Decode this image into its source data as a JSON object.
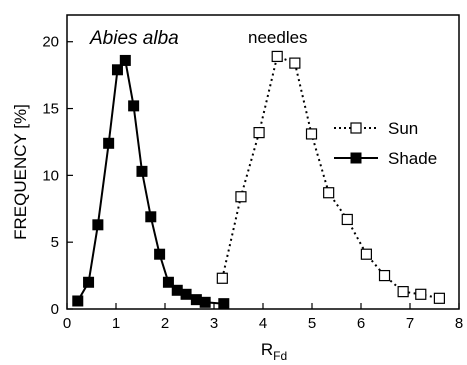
{
  "chart_data": {
    "type": "line",
    "annotations": {
      "species": "Abies alba",
      "tissue": "needles"
    },
    "xlabel_main": "R",
    "xlabel_sub": "Fd",
    "ylabel": "FREQUENCY [%]",
    "xlim": [
      0,
      8
    ],
    "ylim": [
      0,
      22
    ],
    "xticks": [
      0,
      1,
      2,
      3,
      4,
      5,
      6,
      7,
      8
    ],
    "yticks": [
      0,
      5,
      10,
      15,
      20
    ],
    "grid": false,
    "legend_position": "right",
    "series": [
      {
        "name": "Sun",
        "line_style": "dotted",
        "marker": "open-square",
        "color": "#000000",
        "x": [
          3.17,
          3.55,
          3.92,
          4.29,
          4.65,
          4.99,
          5.34,
          5.72,
          6.11,
          6.48,
          6.86,
          7.22,
          7.6
        ],
        "y": [
          2.3,
          8.4,
          13.2,
          18.9,
          18.4,
          13.1,
          8.7,
          6.7,
          4.1,
          2.5,
          1.3,
          1.1,
          0.8
        ]
      },
      {
        "name": "Shade",
        "line_style": "solid",
        "marker": "filled-square",
        "color": "#000000",
        "x": [
          0.22,
          0.44,
          0.63,
          0.85,
          1.03,
          1.19,
          1.36,
          1.53,
          1.71,
          1.89,
          2.07,
          2.25,
          2.43,
          2.64,
          2.82,
          3.2
        ],
        "y": [
          0.6,
          2.0,
          6.3,
          12.4,
          17.9,
          18.6,
          15.2,
          10.3,
          6.9,
          4.1,
          2.0,
          1.4,
          1.1,
          0.7,
          0.5,
          0.4
        ]
      }
    ]
  }
}
